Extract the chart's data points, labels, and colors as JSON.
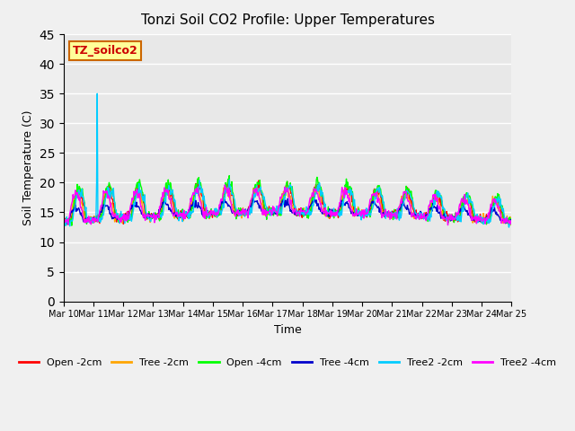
{
  "title": "Tonzi Soil CO2 Profile: Upper Temperatures",
  "xlabel": "Time",
  "ylabel": "Soil Temperature (C)",
  "ylim": [
    0,
    45
  ],
  "yticks": [
    0,
    5,
    10,
    15,
    20,
    25,
    30,
    35,
    40,
    45
  ],
  "series_colors": {
    "Open -2cm": "#ff0000",
    "Tree -2cm": "#ffa500",
    "Open -4cm": "#00ff00",
    "Tree -4cm": "#0000cc",
    "Tree2 -2cm": "#00ccff",
    "Tree2 -4cm": "#ff00ff"
  },
  "legend_label": "TZ_soilco2",
  "background_color": "#e8e8e8",
  "plot_bg_color": "#e8e8e8",
  "n_days": 15,
  "start_day": 10,
  "points_per_day": 48,
  "seed": 42
}
